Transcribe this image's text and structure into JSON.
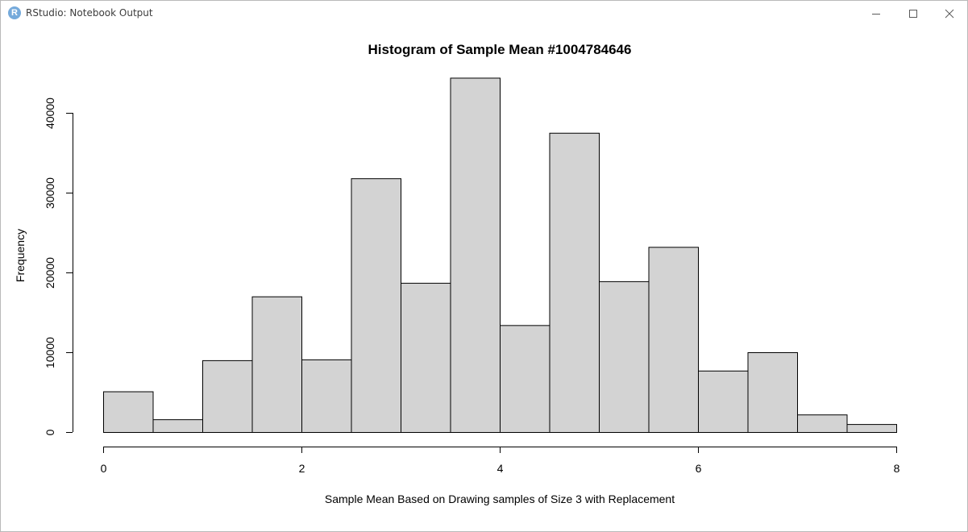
{
  "window": {
    "title": "RStudio: Notebook Output",
    "app_icon_letter": "R",
    "controls": {
      "minimize": "minimize-icon",
      "maximize": "maximize-icon",
      "close": "close-icon"
    }
  },
  "chart_data": {
    "type": "bar",
    "title": "Histogram of Sample Mean #1004784646",
    "xlabel": "Sample Mean Based on Drawing samples of Size 3 with Replacement",
    "ylabel": "Frequency",
    "xlim": [
      0,
      8
    ],
    "ylim": [
      0,
      45000
    ],
    "x_ticks": [
      0,
      2,
      4,
      6,
      8
    ],
    "y_ticks": [
      0,
      10000,
      20000,
      30000,
      40000
    ],
    "bin_edges": [
      0,
      0.5,
      1,
      1.5,
      2,
      2.5,
      3,
      3.5,
      4,
      4.5,
      5,
      5.5,
      6,
      6.5,
      7,
      7.5,
      8
    ],
    "values": [
      5100,
      1600,
      9000,
      17000,
      9100,
      31800,
      18700,
      44400,
      13400,
      37500,
      18900,
      23200,
      7700,
      10000,
      2200,
      1000
    ],
    "bar_fill": "#d3d3d3",
    "bar_stroke": "#000000",
    "grid": false,
    "legend": "none"
  }
}
